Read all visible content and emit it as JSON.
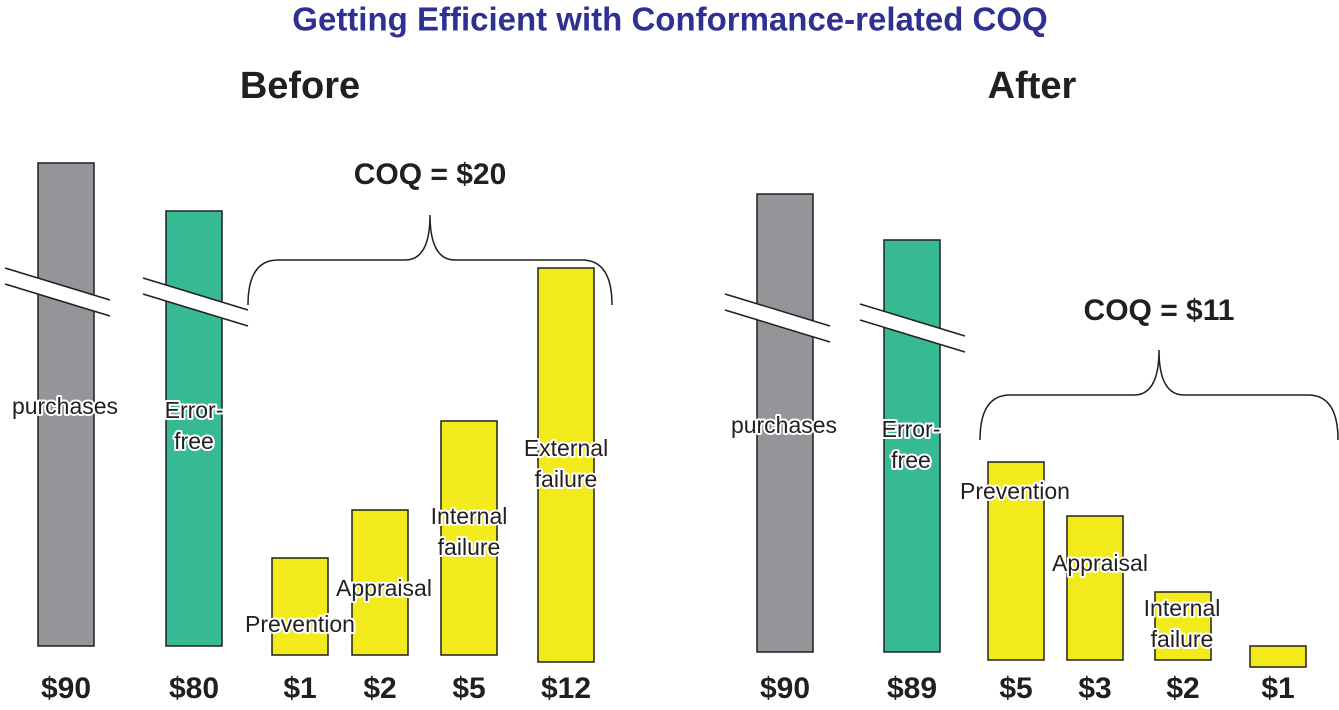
{
  "title": "Getting Efficient with Conformance-related COQ",
  "panels": [
    {
      "heading": "Before",
      "coq": "COQ = $20",
      "bars": [
        {
          "label": [
            "purchases"
          ],
          "amount": "$90"
        },
        {
          "label": [
            "Error-",
            "free"
          ],
          "amount": "$80"
        },
        {
          "label": [
            "Prevention"
          ],
          "amount": "$1"
        },
        {
          "label": [
            "Appraisal"
          ],
          "amount": "$2"
        },
        {
          "label": [
            "Internal",
            "failure"
          ],
          "amount": "$5"
        },
        {
          "label": [
            "External",
            "failure"
          ],
          "amount": "$12"
        }
      ]
    },
    {
      "heading": "After",
      "coq": "COQ = $11",
      "bars": [
        {
          "label": [
            "purchases"
          ],
          "amount": "$90"
        },
        {
          "label": [
            "Error-",
            "free"
          ],
          "amount": "$89"
        },
        {
          "label": [
            "Prevention"
          ],
          "amount": "$5"
        },
        {
          "label": [
            "Appraisal"
          ],
          "amount": "$3"
        },
        {
          "label": [
            "Internal",
            "failure"
          ],
          "amount": "$2"
        },
        {
          "amount": "$1"
        }
      ]
    }
  ]
}
